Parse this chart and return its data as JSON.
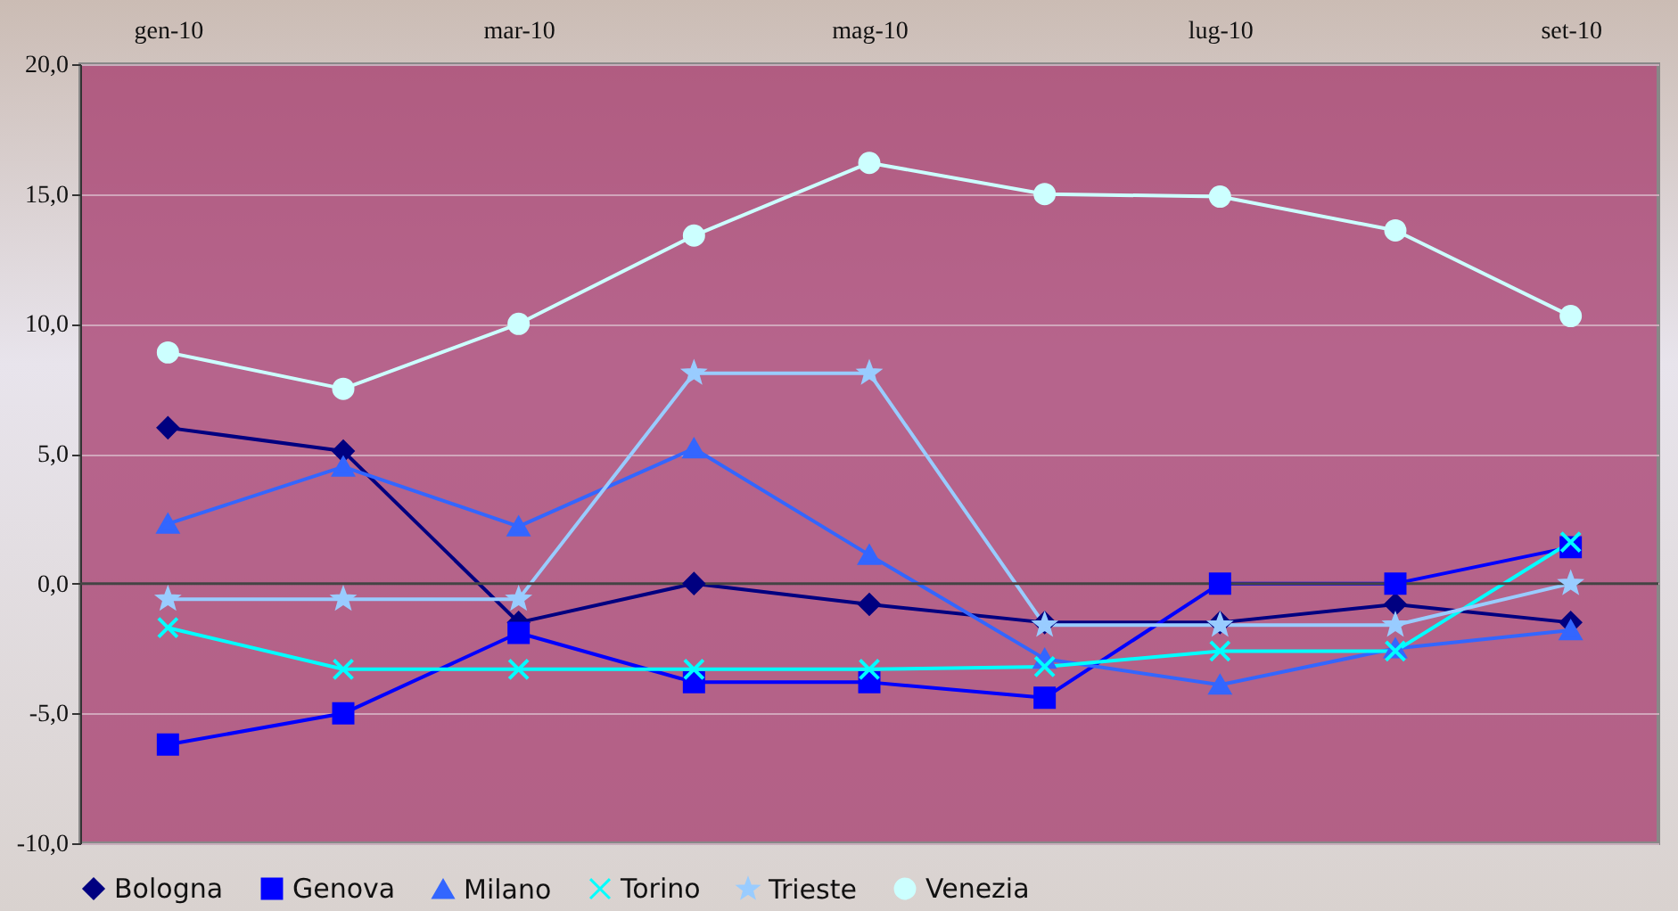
{
  "chart_data": {
    "type": "line",
    "categories": [
      "gen-10",
      null,
      "mar-10",
      null,
      "mag-10",
      null,
      "lug-10",
      null,
      "set-10"
    ],
    "series": [
      {
        "name": "Bologna",
        "color": "#000080",
        "marker": "diamond",
        "values": [
          6.0,
          5.1,
          -1.5,
          0.0,
          -0.8,
          -1.5,
          -1.5,
          -0.8,
          -1.5
        ]
      },
      {
        "name": "Genova",
        "color": "#0000ff",
        "marker": "square",
        "values": [
          -6.2,
          -5.0,
          -1.9,
          -3.8,
          -3.8,
          -4.4,
          0.0,
          0.0,
          1.4
        ]
      },
      {
        "name": "Milano",
        "color": "#3366ff",
        "marker": "triangle",
        "values": [
          2.3,
          4.5,
          2.2,
          5.2,
          1.1,
          -2.9,
          -3.9,
          -2.5,
          -1.8
        ]
      },
      {
        "name": "Torino",
        "color": "#00ffff",
        "marker": "cross",
        "values": [
          -1.7,
          -3.3,
          -3.3,
          -3.3,
          -3.3,
          -3.2,
          -2.6,
          -2.6,
          1.6
        ]
      },
      {
        "name": "Trieste",
        "color": "#99ccff",
        "marker": "star",
        "values": [
          -0.6,
          -0.6,
          -0.6,
          8.1,
          8.1,
          -1.6,
          -1.6,
          -1.6,
          0.0
        ]
      },
      {
        "name": "Venezia",
        "color": "#ccffff",
        "marker": "circle",
        "values": [
          8.9,
          7.5,
          10.0,
          13.4,
          16.2,
          15.0,
          14.9,
          13.6,
          10.3
        ]
      }
    ],
    "ylim": [
      -10,
      20
    ],
    "yticks": [
      {
        "value": -10,
        "label": "-10,0"
      },
      {
        "value": -5,
        "label": "-5,0"
      },
      {
        "value": 0,
        "label": "0,0"
      },
      {
        "value": 5,
        "label": "5,0"
      },
      {
        "value": 10,
        "label": "10,0"
      },
      {
        "value": 15,
        "label": "15,0"
      },
      {
        "value": 20,
        "label": "20,0"
      }
    ],
    "grid": "y",
    "legend": "bottom",
    "line_style": "solid"
  }
}
